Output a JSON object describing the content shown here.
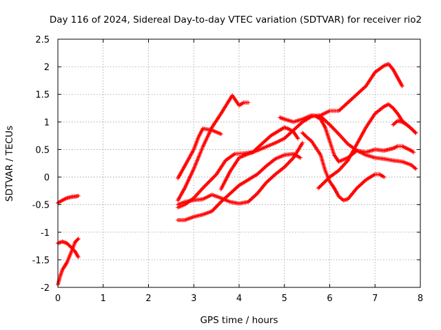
{
  "chart_data": {
    "type": "scatter",
    "title": "Day 116 of 2024, Sidereal Day-to-day VTEC variation (SDTVAR) for receiver rio2",
    "xlabel": "GPS time / hours",
    "ylabel": "SDTVAR / TECUs",
    "xlim": [
      0,
      8
    ],
    "ylim": [
      -2,
      2.5
    ],
    "x_ticks": [
      0,
      1,
      2,
      3,
      4,
      5,
      6,
      7,
      8
    ],
    "y_ticks": [
      -2,
      -1.5,
      -1,
      -0.5,
      0,
      0.5,
      1,
      1.5,
      2,
      2.5
    ],
    "x_tick_labels": [
      "0",
      "1",
      "2",
      "3",
      "4",
      "5",
      "6",
      "7",
      "8"
    ],
    "y_tick_labels": [
      "-2",
      "-1.5",
      "-1",
      "-0.5",
      "0",
      "0.5",
      "1",
      "1.5",
      "2",
      "2.5"
    ],
    "grid": true,
    "marker": "+",
    "color": "#ff0000",
    "series": [
      {
        "x": [
          0.0,
          0.1,
          0.2,
          0.3,
          0.4,
          0.45
        ],
        "y": [
          -0.47,
          -0.42,
          -0.38,
          -0.36,
          -0.35,
          -0.34
        ]
      },
      {
        "x": [
          0.0,
          0.05,
          0.1,
          0.2,
          0.3,
          0.38,
          0.45
        ],
        "y": [
          -1.95,
          -1.8,
          -1.68,
          -1.55,
          -1.35,
          -1.18,
          -1.12
        ]
      },
      {
        "x": [
          0.0,
          0.1,
          0.2,
          0.3,
          0.38,
          0.45
        ],
        "y": [
          -1.2,
          -1.17,
          -1.2,
          -1.28,
          -1.35,
          -1.45
        ]
      },
      {
        "x": [
          2.65,
          2.8,
          3.0,
          3.1,
          3.2,
          3.4,
          3.6
        ],
        "y": [
          -0.02,
          0.2,
          0.5,
          0.72,
          0.88,
          0.85,
          0.78
        ]
      },
      {
        "x": [
          2.65,
          2.8,
          3.0,
          3.2,
          3.4,
          3.6,
          3.75,
          3.85,
          4.0,
          4.1,
          4.2
        ],
        "y": [
          -0.42,
          -0.2,
          0.15,
          0.55,
          0.9,
          1.15,
          1.35,
          1.48,
          1.3,
          1.35,
          1.35
        ]
      },
      {
        "x": [
          2.65,
          2.8,
          3.0,
          3.2,
          3.4,
          3.6,
          3.8,
          4.0,
          4.2,
          4.4,
          4.6,
          4.8,
          5.0,
          5.2,
          5.4
        ],
        "y": [
          -0.5,
          -0.45,
          -0.42,
          -0.4,
          -0.32,
          -0.38,
          -0.45,
          -0.48,
          -0.45,
          -0.3,
          -0.1,
          0.05,
          0.18,
          0.35,
          0.62
        ]
      },
      {
        "x": [
          2.65,
          2.8,
          3.0,
          3.2,
          3.5,
          3.7,
          3.9,
          4.1,
          4.3,
          4.5,
          4.7,
          4.9,
          5.0,
          5.1,
          5.2,
          5.3
        ],
        "y": [
          -0.55,
          -0.5,
          -0.38,
          -0.2,
          0.05,
          0.3,
          0.42,
          0.43,
          0.45,
          0.6,
          0.75,
          0.85,
          0.9,
          0.87,
          0.82,
          0.7
        ]
      },
      {
        "x": [
          2.65,
          2.8,
          3.0,
          3.2,
          3.4,
          3.6,
          3.8,
          4.0,
          4.2,
          4.4,
          4.6,
          4.8,
          5.0,
          5.2,
          5.35
        ],
        "y": [
          -0.78,
          -0.78,
          -0.72,
          -0.68,
          -0.62,
          -0.45,
          -0.3,
          -0.15,
          -0.05,
          0.05,
          0.2,
          0.33,
          0.4,
          0.42,
          0.35
        ]
      },
      {
        "x": [
          3.6,
          3.8,
          4.0,
          4.2,
          4.4,
          4.6,
          4.8,
          5.0,
          5.2,
          5.4,
          5.6,
          5.8,
          6.0,
          6.2,
          6.4,
          6.6,
          6.8,
          7.0,
          7.2,
          7.3,
          7.4,
          7.5,
          7.6
        ],
        "y": [
          -0.22,
          0.1,
          0.35,
          0.42,
          0.48,
          0.55,
          0.62,
          0.7,
          0.85,
          1.0,
          1.1,
          1.12,
          1.2,
          1.2,
          1.35,
          1.5,
          1.65,
          1.9,
          2.02,
          2.05,
          1.95,
          1.8,
          1.65
        ]
      },
      {
        "x": [
          4.9,
          5.0,
          5.2,
          5.4,
          5.6,
          5.8,
          6.0,
          6.2,
          6.4,
          6.6,
          6.8,
          7.0,
          7.2,
          7.4,
          7.6,
          7.8,
          7.9
        ],
        "y": [
          1.08,
          1.05,
          1.0,
          1.05,
          1.12,
          1.1,
          0.95,
          0.78,
          0.6,
          0.48,
          0.4,
          0.35,
          0.33,
          0.3,
          0.28,
          0.22,
          0.15
        ]
      },
      {
        "x": [
          5.7,
          5.8,
          5.9,
          6.0,
          6.1,
          6.2,
          6.4,
          6.6,
          6.8,
          7.0,
          7.2,
          7.3,
          7.4,
          7.5,
          7.6,
          7.7,
          7.8,
          7.85
        ],
        "y": [
          1.1,
          1.05,
          0.9,
          0.65,
          0.4,
          0.28,
          0.35,
          0.48,
          0.45,
          0.5,
          0.48,
          0.5,
          0.52,
          0.56,
          0.56,
          0.52,
          0.48,
          0.45
        ]
      },
      {
        "x": [
          5.4,
          5.5,
          5.6,
          5.8,
          5.9,
          6.0,
          6.1,
          6.2,
          6.3,
          6.4,
          6.6,
          6.8,
          7.0,
          7.1,
          7.2
        ],
        "y": [
          0.8,
          0.72,
          0.65,
          0.4,
          0.12,
          -0.08,
          -0.2,
          -0.35,
          -0.42,
          -0.4,
          -0.2,
          -0.05,
          0.05,
          0.05,
          0.0
        ]
      },
      {
        "x": [
          5.75,
          5.9,
          6.0,
          6.2,
          6.4,
          6.6,
          6.8,
          7.0,
          7.2,
          7.3,
          7.4,
          7.5,
          7.6,
          7.7,
          7.8,
          7.9
        ],
        "y": [
          -0.2,
          -0.08,
          0.0,
          0.12,
          0.3,
          0.6,
          0.9,
          1.15,
          1.28,
          1.32,
          1.25,
          1.15,
          1.02,
          0.95,
          0.88,
          0.8
        ]
      },
      {
        "x": [
          7.4,
          7.5,
          7.6,
          7.7,
          7.8,
          7.9
        ],
        "y": [
          0.95,
          1.02,
          1.0,
          0.95,
          0.88,
          0.8
        ]
      }
    ]
  }
}
